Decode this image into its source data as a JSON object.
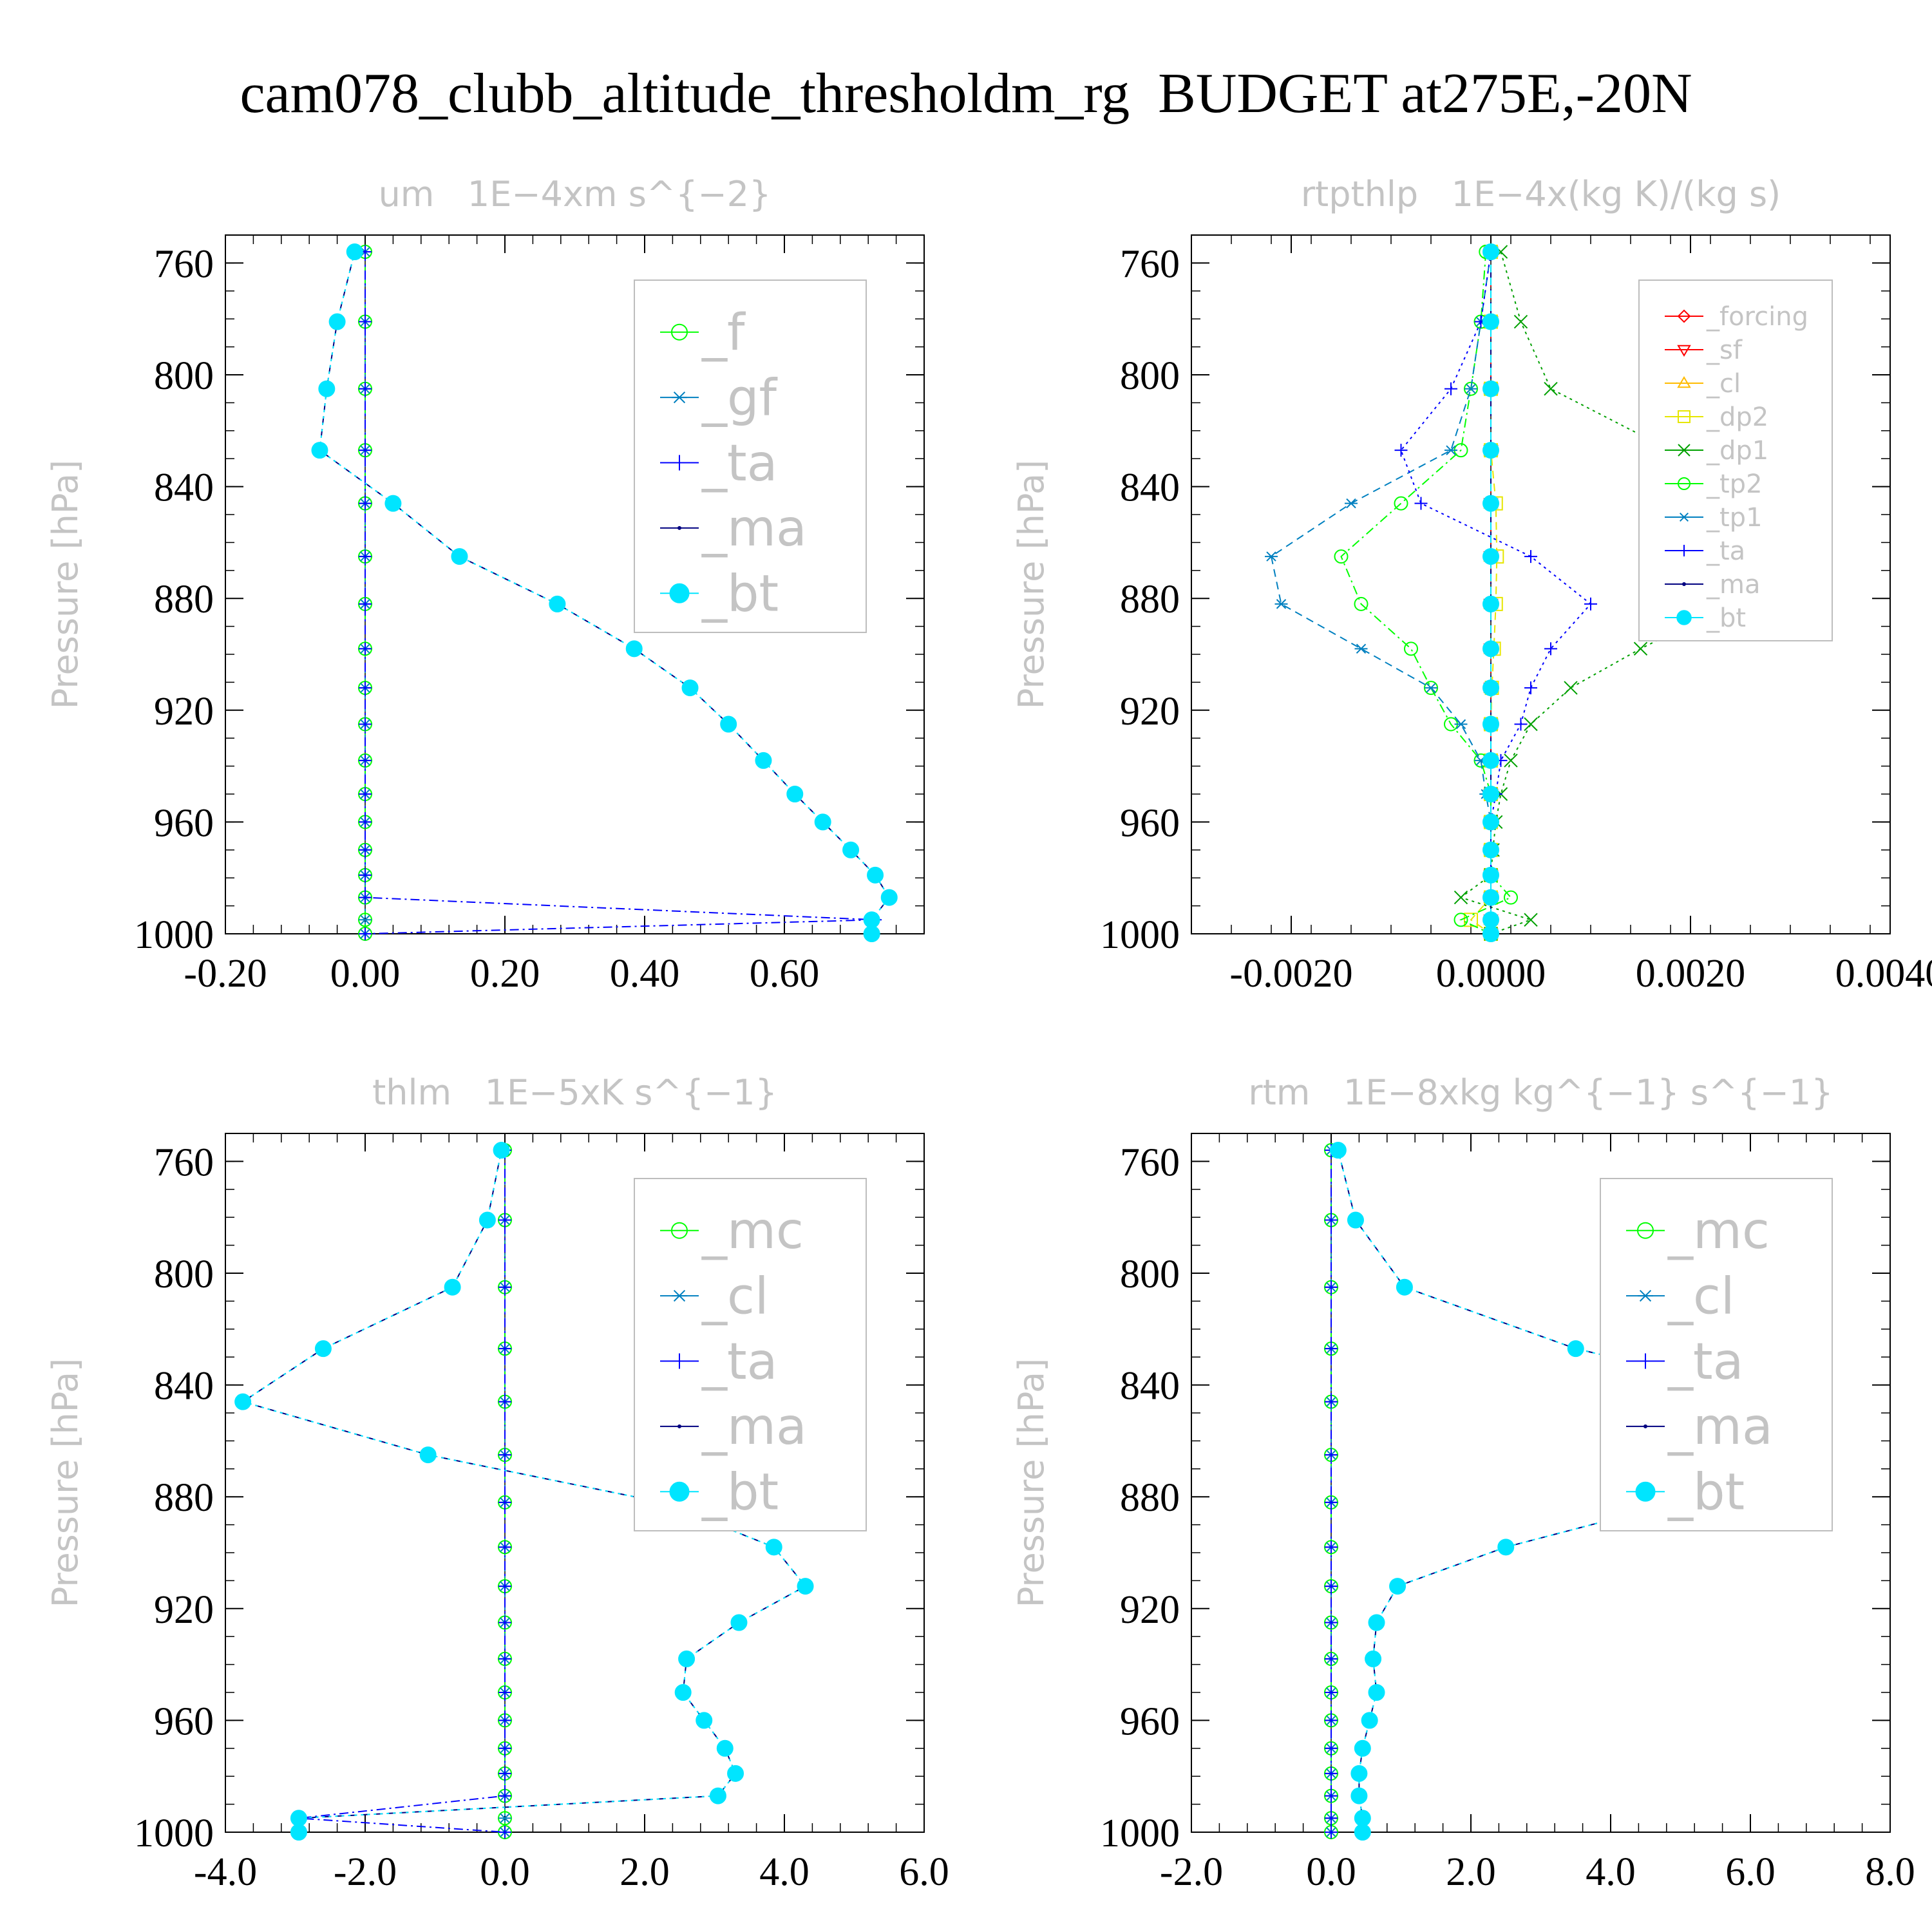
{
  "title": "cam078_clubb_altitude_thresholdm_rg  BUDGET at275E,-20N",
  "chart_data": [
    {
      "type": "line",
      "title": "um   1E−4xm s^{−2}",
      "ylabel": "Pressure [hPa]",
      "xlim": [
        -0.2,
        0.8
      ],
      "ylim": [
        1000,
        750
      ],
      "xticks": [
        -0.2,
        0.0,
        0.2,
        0.4,
        0.6
      ],
      "xtick_labels": [
        "-0.20",
        "0.00",
        "0.20",
        "0.40",
        "0.60"
      ],
      "yticks": [
        760,
        800,
        840,
        880,
        920,
        960,
        1000
      ],
      "ytick_labels": [
        "760",
        "800",
        "840",
        "880",
        "920",
        "960",
        "1000"
      ],
      "legend": "top-right",
      "legend_font_size": 78,
      "levels": [
        756,
        781,
        805,
        827,
        846,
        865,
        882,
        898,
        912,
        925,
        938,
        950,
        960,
        970,
        979,
        987,
        995,
        1000
      ],
      "series": [
        {
          "name": "_f",
          "color": "#00ff00",
          "marker": "circle",
          "values": [
            0,
            0,
            0,
            0,
            0,
            0,
            0,
            0,
            0,
            0,
            0,
            0,
            0,
            0,
            0,
            0,
            0,
            0
          ]
        },
        {
          "name": "_gf",
          "color": "#0080c0",
          "marker": "asterisk",
          "values": [
            0,
            0,
            0,
            0,
            0,
            0,
            0,
            0,
            0,
            0,
            0,
            0,
            0,
            0,
            0,
            0,
            0,
            0
          ]
        },
        {
          "name": "_ta",
          "color": "#0000ff",
          "marker": "plus",
          "values": [
            0,
            0,
            0,
            0,
            0,
            0,
            0,
            0,
            0,
            0,
            0,
            0,
            0,
            0,
            0,
            0,
            0.73,
            0
          ]
        },
        {
          "name": "_ma",
          "color": "#000080",
          "marker": "dot",
          "values": [
            -0.015,
            -0.04,
            -0.055,
            -0.065,
            0.04,
            0.135,
            0.275,
            0.385,
            0.465,
            0.52,
            0.57,
            0.615,
            0.655,
            0.695,
            0.73,
            0.75,
            0.725,
            0.725
          ]
        },
        {
          "name": "_bt",
          "color": "#00e5ff",
          "marker": "filled",
          "values": [
            -0.015,
            -0.04,
            -0.055,
            -0.065,
            0.04,
            0.135,
            0.275,
            0.385,
            0.465,
            0.52,
            0.57,
            0.615,
            0.655,
            0.695,
            0.73,
            0.75,
            0.725,
            0.725
          ]
        }
      ]
    },
    {
      "type": "line",
      "title": "rtpthlp   1E−4x(kg K)/(kg s)",
      "ylabel": "Pressure [hPa]",
      "xlim": [
        -0.003,
        0.004
      ],
      "ylim": [
        1000,
        750
      ],
      "xticks": [
        -0.002,
        0.0,
        0.002,
        0.004
      ],
      "xtick_labels": [
        "-0.0020",
        "0.0000",
        "0.0020",
        "0.0040"
      ],
      "yticks": [
        760,
        800,
        840,
        880,
        920,
        960,
        1000
      ],
      "ytick_labels": [
        "760",
        "800",
        "840",
        "880",
        "920",
        "960",
        "1000"
      ],
      "legend": "top-right",
      "legend_font_size": 40,
      "levels": [
        756,
        781,
        805,
        827,
        846,
        865,
        882,
        898,
        912,
        925,
        938,
        950,
        960,
        970,
        979,
        987,
        995,
        1000
      ],
      "series": [
        {
          "name": "_forcing",
          "color": "#ff0000",
          "marker": "diamond",
          "values": [
            0,
            0,
            0,
            0,
            0,
            0,
            0,
            0,
            0,
            0,
            0,
            0,
            0,
            0,
            0,
            0,
            0,
            0
          ]
        },
        {
          "name": "_sf",
          "color": "#ff0000",
          "marker": "triangle-down",
          "values": [
            0,
            0,
            0,
            0,
            0,
            0,
            0,
            0,
            0,
            0,
            0,
            0,
            0,
            0,
            0,
            0,
            0,
            0
          ]
        },
        {
          "name": "_cl",
          "color": "#ffbb00",
          "marker": "triangle-up",
          "values": [
            0,
            0,
            0,
            0,
            0,
            0,
            0,
            0,
            0,
            0,
            0,
            0,
            0,
            0,
            0,
            0,
            0,
            0
          ]
        },
        {
          "name": "_dp2",
          "color": "#e6e600",
          "marker": "square",
          "values": [
            0,
            0,
            0,
            0,
            5e-05,
            6e-05,
            5e-05,
            3e-05,
            1e-05,
            0,
            0,
            0,
            0,
            0,
            0,
            0,
            -0.0002,
            0
          ]
        },
        {
          "name": "_dp1",
          "color": "#00a000",
          "marker": "x",
          "values": [
            0.0001,
            0.0003,
            0.0006,
            0.0018,
            0.0029,
            0.0031,
            0.0024,
            0.0015,
            0.0008,
            0.0004,
            0.0002,
            0.0001,
            5e-05,
            2e-05,
            0,
            -0.0003,
            0.0004,
            0
          ]
        },
        {
          "name": "_tp2",
          "color": "#00ff00",
          "marker": "circle",
          "values": [
            -5e-05,
            -0.0001,
            -0.0002,
            -0.0003,
            -0.0009,
            -0.0015,
            -0.0013,
            -0.0008,
            -0.0006,
            -0.0004,
            -0.0001,
            0,
            0,
            0,
            0,
            0.0002,
            -0.0003,
            0
          ]
        },
        {
          "name": "_tp1",
          "color": "#0080c0",
          "marker": "asterisk",
          "values": [
            0,
            -0.0001,
            -0.0002,
            -0.0004,
            -0.0014,
            -0.0022,
            -0.0021,
            -0.0013,
            -0.0006,
            -0.0003,
            -0.0001,
            -5e-05,
            0,
            0,
            0,
            0,
            0,
            0
          ]
        },
        {
          "name": "_ta",
          "color": "#0000ff",
          "marker": "plus",
          "values": [
            0,
            -0.0001,
            -0.0004,
            -0.0009,
            -0.0007,
            0.0004,
            0.001,
            0.0006,
            0.0004,
            0.0003,
            0.0001,
            5e-05,
            0,
            0,
            0,
            0,
            0,
            0
          ]
        },
        {
          "name": "_ma",
          "color": "#000080",
          "marker": "dot",
          "values": [
            0,
            0,
            0,
            0,
            0,
            0,
            0,
            0,
            0,
            0,
            0,
            0,
            0,
            0,
            0,
            0,
            0,
            0
          ]
        },
        {
          "name": "_bt",
          "color": "#00e5ff",
          "marker": "filled",
          "values": [
            0,
            0,
            0,
            0,
            0,
            0,
            0,
            0,
            0,
            0,
            0,
            0,
            0,
            0,
            0,
            0,
            0,
            0
          ]
        }
      ]
    },
    {
      "type": "line",
      "title": "thlm   1E−5xK s^{−1}",
      "ylabel": "Pressure [hPa]",
      "xlim": [
        -4.0,
        6.0
      ],
      "ylim": [
        1000,
        750
      ],
      "xticks": [
        -4.0,
        -2.0,
        0.0,
        2.0,
        4.0,
        6.0
      ],
      "xtick_labels": [
        "-4.0",
        "-2.0",
        "0.0",
        "2.0",
        "4.0",
        "6.0"
      ],
      "yticks": [
        760,
        800,
        840,
        880,
        920,
        960,
        1000
      ],
      "ytick_labels": [
        "760",
        "800",
        "840",
        "880",
        "920",
        "960",
        "1000"
      ],
      "legend": "top-right",
      "legend_font_size": 78,
      "levels": [
        756,
        781,
        805,
        827,
        846,
        865,
        882,
        898,
        912,
        925,
        938,
        950,
        960,
        970,
        979,
        987,
        995,
        1000
      ],
      "series": [
        {
          "name": "_mc",
          "color": "#00ff00",
          "marker": "circle",
          "values": [
            0,
            0,
            0,
            0,
            0,
            0,
            0,
            0,
            0,
            0,
            0,
            0,
            0,
            0,
            0,
            0,
            0,
            0
          ]
        },
        {
          "name": "_cl",
          "color": "#0080c0",
          "marker": "asterisk",
          "values": [
            0,
            0,
            0,
            0,
            0,
            0,
            0,
            0,
            0,
            0,
            0,
            0,
            0,
            0,
            0,
            0,
            0,
            0
          ]
        },
        {
          "name": "_ta",
          "color": "#0000ff",
          "marker": "plus",
          "values": [
            0,
            0,
            0,
            0,
            0,
            0,
            0,
            0,
            0,
            0,
            0,
            0,
            0,
            0,
            0,
            0,
            -2.95,
            0
          ]
        },
        {
          "name": "_ma",
          "color": "#000080",
          "marker": "dot",
          "values": [
            -0.05,
            -0.25,
            -0.75,
            -2.6,
            -3.75,
            -1.1,
            2.25,
            3.85,
            4.3,
            3.35,
            2.6,
            2.55,
            2.85,
            3.15,
            3.3,
            3.05,
            -2.95,
            -2.95
          ]
        },
        {
          "name": "_bt",
          "color": "#00e5ff",
          "marker": "filled",
          "values": [
            -0.05,
            -0.25,
            -0.75,
            -2.6,
            -3.75,
            -1.1,
            2.25,
            3.85,
            4.3,
            3.35,
            2.6,
            2.55,
            2.85,
            3.15,
            3.3,
            3.05,
            -2.95,
            -2.95
          ]
        }
      ]
    },
    {
      "type": "line",
      "title": "rtm   1E−8xkg kg^{−1} s^{−1}",
      "ylabel": "Pressure [hPa]",
      "xlim": [
        -2.0,
        8.0
      ],
      "ylim": [
        1000,
        750
      ],
      "xticks": [
        -2.0,
        0.0,
        2.0,
        4.0,
        6.0,
        8.0
      ],
      "xtick_labels": [
        "-2.0",
        "0.0",
        "2.0",
        "4.0",
        "6.0",
        "8.0"
      ],
      "yticks": [
        760,
        800,
        840,
        880,
        920,
        960,
        1000
      ],
      "ytick_labels": [
        "760",
        "800",
        "840",
        "880",
        "920",
        "960",
        "1000"
      ],
      "legend": "top-right",
      "legend_font_size": 78,
      "levels": [
        756,
        781,
        805,
        827,
        846,
        865,
        882,
        898,
        912,
        925,
        938,
        950,
        960,
        970,
        979,
        987,
        995,
        1000
      ],
      "series": [
        {
          "name": "_mc",
          "color": "#00ff00",
          "marker": "circle",
          "values": [
            0,
            0,
            0,
            0,
            0,
            0,
            0,
            0,
            0,
            0,
            0,
            0,
            0,
            0,
            0,
            0,
            0,
            0
          ]
        },
        {
          "name": "_cl",
          "color": "#0080c0",
          "marker": "asterisk",
          "values": [
            0,
            0,
            0,
            0,
            0,
            0,
            0,
            0,
            0,
            0,
            0,
            0,
            0,
            0,
            0,
            0,
            0,
            0
          ]
        },
        {
          "name": "_ta",
          "color": "#0000ff",
          "marker": "plus",
          "values": [
            0,
            0,
            0,
            0,
            0,
            0,
            0,
            0,
            0,
            0,
            0,
            0,
            0,
            0,
            0,
            0,
            0,
            0
          ]
        },
        {
          "name": "_ma",
          "color": "#000080",
          "marker": "dot",
          "values": [
            0.1,
            0.35,
            1.05,
            3.5,
            6.75,
            6.7,
            4.95,
            2.5,
            0.95,
            0.65,
            0.6,
            0.65,
            0.55,
            0.45,
            0.4,
            0.4,
            0.45,
            0.45
          ]
        },
        {
          "name": "_bt",
          "color": "#00e5ff",
          "marker": "filled",
          "values": [
            0.1,
            0.35,
            1.05,
            3.5,
            6.75,
            6.7,
            4.95,
            2.5,
            0.95,
            0.65,
            0.6,
            0.65,
            0.55,
            0.45,
            0.4,
            0.4,
            0.45,
            0.45
          ]
        }
      ]
    }
  ]
}
